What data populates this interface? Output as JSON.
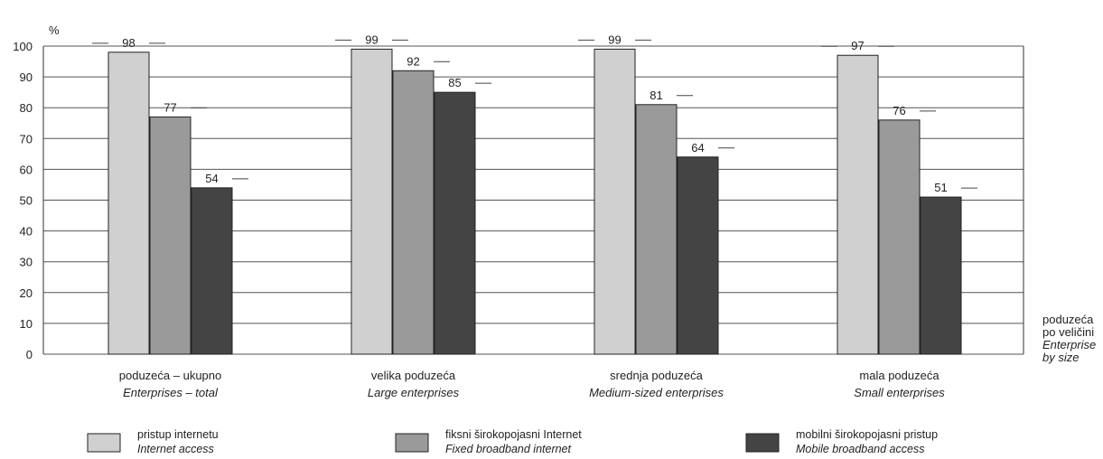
{
  "chart_data": {
    "type": "bar",
    "ylabel": "%",
    "ylim": [
      0,
      100
    ],
    "yticks": [
      0,
      10,
      20,
      30,
      40,
      50,
      60,
      70,
      80,
      90,
      100
    ],
    "grid": true,
    "categories": [
      {
        "label": "poduzeća – ukupno",
        "label_en": "Enterprises – total"
      },
      {
        "label": "velika poduzeća",
        "label_en": "Large enterprises"
      },
      {
        "label": "srednja poduzeća",
        "label_en": "Medium-sized enterprises"
      },
      {
        "label": "mala poduzeća",
        "label_en": "Small enterprises"
      }
    ],
    "xlabel_lines": [
      "poduzeća",
      "po veličini",
      "Enterprise",
      "by size"
    ],
    "series": [
      {
        "name": "pristup internetu",
        "name_en": "Internet access",
        "color": "#d0d0d0",
        "values": [
          98,
          99,
          99,
          97
        ]
      },
      {
        "name": "fiksni širokopojasni Internet",
        "name_en": "Fixed broadband internet",
        "color": "#9a9a9a",
        "values": [
          77,
          92,
          81,
          76
        ]
      },
      {
        "name": "mobilni širokopojasni pristup",
        "name_en": "Mobile broadband access",
        "color": "#444444",
        "values": [
          54,
          85,
          64,
          51
        ]
      }
    ],
    "legend_position": "bottom"
  }
}
